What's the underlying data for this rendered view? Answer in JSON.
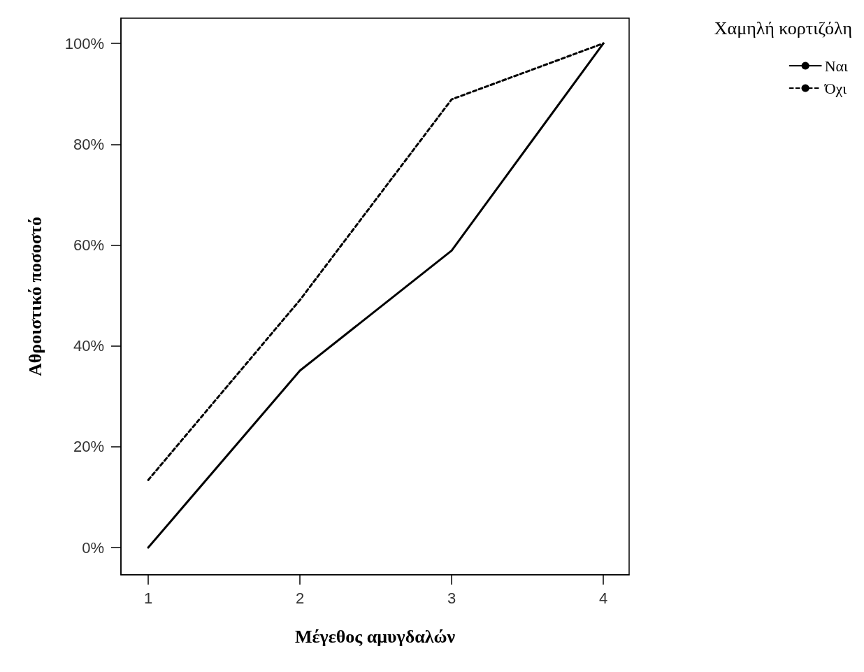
{
  "chart_data": {
    "type": "line",
    "xlabel": "Μέγεθος αμυγδαλών",
    "ylabel": "Αθροιστικό ποσοστό",
    "legend_title": "Χαμηλή κορτιζόλη",
    "x": [
      1,
      2,
      3,
      4
    ],
    "series": [
      {
        "name": "Ναι",
        "color": "#000000",
        "line_style": "solid",
        "values": [
          0,
          35.1,
          58.9,
          100
        ]
      },
      {
        "name": "Όχι",
        "color": "#000000",
        "line_style": "dashed",
        "values": [
          13.4,
          49.1,
          88.9,
          100
        ]
      }
    ],
    "xlim": [
      0.82,
      4.17
    ],
    "xticks": [
      1,
      2,
      3,
      4
    ],
    "ylim": [
      -5.4,
      105
    ],
    "yticks": [
      {
        "value": 0,
        "label": "0%"
      },
      {
        "value": 20,
        "label": "20%"
      },
      {
        "value": 40,
        "label": "40%"
      },
      {
        "value": 60,
        "label": "60%"
      },
      {
        "value": 80,
        "label": "80%"
      },
      {
        "value": 100,
        "label": "100%"
      }
    ],
    "grid": false,
    "legend": "top right",
    "marker": "none"
  }
}
